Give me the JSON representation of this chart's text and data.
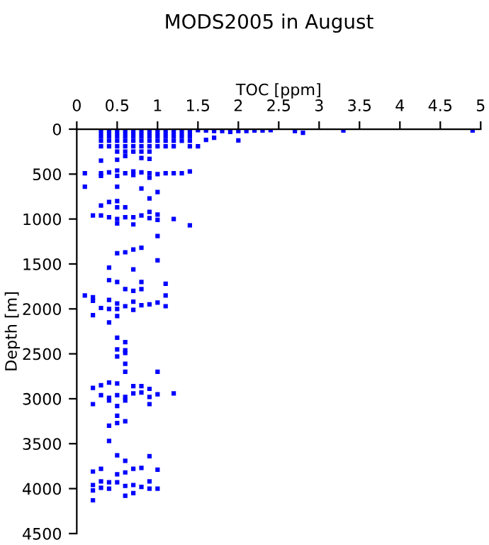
{
  "chart_data": {
    "type": "scatter",
    "title": "MODS2005 in August",
    "xlabel": "TOC [ppm]",
    "ylabel": "Depth [m]",
    "xlim": [
      0,
      5
    ],
    "xticks": [
      0,
      0.5,
      1,
      1.5,
      2,
      2.5,
      3,
      3.5,
      4,
      4.5,
      5
    ],
    "ylim": [
      4500,
      0
    ],
    "yticks": [
      0,
      500,
      1000,
      1500,
      2000,
      2500,
      3000,
      3500,
      4000,
      4500
    ],
    "marker": "square",
    "grid": false,
    "legend": false,
    "series": [
      {
        "color": "#0000ff",
        "x": [
          1.5,
          1.6,
          1.7,
          1.8,
          1.9,
          2.0,
          2.1,
          2.2,
          2.3,
          2.4,
          2.7,
          2.8,
          3.3,
          4.9,
          2.0,
          1.6,
          1.7,
          1.5,
          0.3,
          0.4,
          0.5,
          0.6,
          0.7,
          0.8,
          0.9,
          1.0,
          1.1,
          1.2,
          1.3,
          1.4,
          0.3,
          0.4,
          0.5,
          0.6,
          0.7,
          0.8,
          0.9,
          1.0,
          1.1,
          1.2,
          1.3,
          1.4,
          0.3,
          0.4,
          0.5,
          0.6,
          0.7,
          0.8,
          0.9,
          1.0,
          1.1,
          1.2,
          1.3,
          1.4,
          0.3,
          0.4,
          0.5,
          0.6,
          0.7,
          0.8,
          0.9,
          1.0,
          1.1,
          1.2,
          1.4,
          0.5,
          0.6,
          0.7,
          0.8,
          0.9,
          0.3,
          0.5,
          0.6,
          0.8,
          0.9,
          0.1,
          0.3,
          0.3,
          0.4,
          0.5,
          0.5,
          0.6,
          0.7,
          0.7,
          0.8,
          0.9,
          0.9,
          1.0,
          1.1,
          1.2,
          1.3,
          1.4,
          0.1,
          0.5,
          0.8,
          1.0,
          0.9,
          0.3,
          0.4,
          0.5,
          0.5,
          0.6,
          0.2,
          0.3,
          0.4,
          0.5,
          0.5,
          0.6,
          0.7,
          0.7,
          0.8,
          0.9,
          0.9,
          1.0,
          1.0,
          1.2,
          1.4,
          1.0,
          0.7,
          0.8,
          0.5,
          0.6,
          1.0,
          0.4,
          0.7,
          0.4,
          0.5,
          0.8,
          1.1,
          0.6,
          0.7,
          0.8,
          0.1,
          0.2,
          1.1,
          0.2,
          0.4,
          0.5,
          0.3,
          0.4,
          0.5,
          0.6,
          0.7,
          0.7,
          0.8,
          0.9,
          1.0,
          1.1,
          0.2,
          0.5,
          0.4,
          0.5,
          0.6,
          0.5,
          0.6,
          0.5,
          0.6,
          0.6,
          0.6,
          1.0,
          0.2,
          0.3,
          0.4,
          0.5,
          0.7,
          0.8,
          0.9,
          0.3,
          0.4,
          0.5,
          0.6,
          0.7,
          0.8,
          0.9,
          1.0,
          1.2,
          0.2,
          0.4,
          0.5,
          0.6,
          0.9,
          0.5,
          0.5,
          0.6,
          0.4,
          0.4,
          0.5,
          0.6,
          0.9,
          1.0,
          0.2,
          0.3,
          0.5,
          0.6,
          0.7,
          0.8,
          0.2,
          0.3,
          0.4,
          0.5,
          0.6,
          0.7,
          0.8,
          0.9,
          0.9,
          1.0,
          0.2,
          0.3,
          0.4,
          0.6,
          0.7,
          0.2
        ],
        "values": [
          10,
          15,
          20,
          20,
          30,
          20,
          20,
          15,
          15,
          10,
          20,
          40,
          15,
          15,
          125,
          120,
          95,
          190,
          30,
          30,
          30,
          30,
          30,
          30,
          30,
          30,
          30,
          30,
          30,
          30,
          80,
          80,
          80,
          80,
          80,
          80,
          80,
          80,
          80,
          80,
          80,
          80,
          130,
          130,
          130,
          130,
          130,
          130,
          130,
          130,
          130,
          130,
          130,
          130,
          190,
          190,
          190,
          190,
          190,
          190,
          190,
          190,
          190,
          190,
          190,
          250,
          250,
          250,
          250,
          250,
          350,
          340,
          300,
          320,
          330,
          490,
          490,
          520,
          480,
          460,
          520,
          490,
          470,
          510,
          480,
          490,
          540,
          500,
          490,
          490,
          490,
          470,
          640,
          640,
          660,
          700,
          770,
          850,
          810,
          800,
          870,
          870,
          960,
          960,
          980,
          1000,
          1050,
          980,
          980,
          1060,
          960,
          920,
          990,
          950,
          1010,
          1000,
          1070,
          1190,
          1340,
          1320,
          1380,
          1370,
          1460,
          1540,
          1560,
          1680,
          1700,
          1700,
          1720,
          1780,
          1800,
          1780,
          1850,
          1870,
          1850,
          1910,
          1900,
          1940,
          1990,
          2000,
          2000,
          1970,
          1920,
          2010,
          1960,
          1950,
          1930,
          1970,
          2070,
          2080,
          2150,
          2320,
          2370,
          2450,
          2460,
          2530,
          2490,
          2610,
          2700,
          2700,
          2880,
          2850,
          2820,
          2830,
          2860,
          2860,
          2890,
          2960,
          2990,
          2960,
          2980,
          2940,
          2930,
          2980,
          2950,
          2940,
          3060,
          3020,
          3080,
          3020,
          3060,
          3190,
          3270,
          3250,
          3300,
          3470,
          3630,
          3690,
          3640,
          3790,
          3810,
          3780,
          3840,
          3820,
          3780,
          3770,
          3960,
          3920,
          3930,
          3930,
          3970,
          3960,
          3980,
          3920,
          4000,
          4000,
          4020,
          3990,
          4000,
          4080,
          4050,
          4130
        ]
      }
    ]
  }
}
